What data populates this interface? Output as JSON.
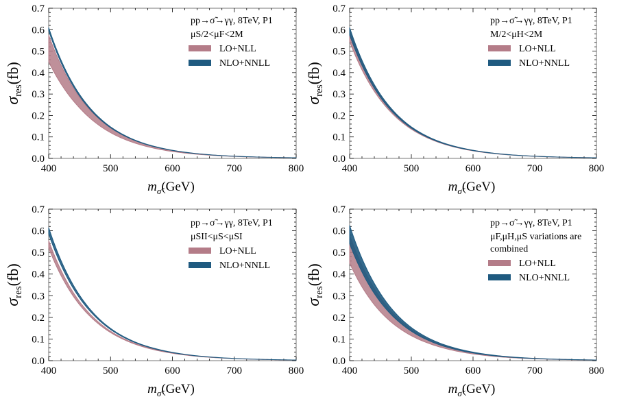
{
  "chart_data": [
    {
      "type": "area",
      "panel": "top-left",
      "title_lines": [
        "pp→σ̃→γγ, 8TeV, P1",
        "μS/2<μF<2M"
      ],
      "xlabel": "mσ̃(GeV)",
      "ylabel": "σres(fb)",
      "xlim": [
        400,
        800
      ],
      "ylim": [
        0,
        0.7
      ],
      "xticks": [
        400,
        500,
        600,
        700,
        800
      ],
      "yticks": [
        0.0,
        0.1,
        0.2,
        0.3,
        0.4,
        0.5,
        0.6,
        0.7
      ],
      "legend_position": "top-right",
      "x": [
        400,
        450,
        500,
        550,
        600,
        650,
        700,
        750,
        800
      ],
      "series": [
        {
          "name": "LO+NLL",
          "color": "#b47c88",
          "lower": [
            0.45,
            0.235,
            0.12,
            0.062,
            0.032,
            0.017,
            0.009,
            0.005,
            0.0027
          ],
          "upper": [
            0.575,
            0.285,
            0.142,
            0.072,
            0.037,
            0.019,
            0.01,
            0.0055,
            0.003
          ]
        },
        {
          "name": "NLO+NNLL",
          "color": "#1f5a80",
          "lower": [
            0.595,
            0.29,
            0.143,
            0.072,
            0.037,
            0.019,
            0.01,
            0.0055,
            0.003
          ],
          "upper": [
            0.61,
            0.298,
            0.147,
            0.074,
            0.038,
            0.0195,
            0.0103,
            0.0056,
            0.0031
          ]
        }
      ]
    },
    {
      "type": "area",
      "panel": "top-right",
      "title_lines": [
        "pp→σ̃→γγ, 8TeV, P1",
        "M/2<μH<2M"
      ],
      "xlabel": "mσ̃(GeV)",
      "ylabel": "σres(fb)",
      "xlim": [
        400,
        800
      ],
      "ylim": [
        0,
        0.7
      ],
      "xticks": [
        400,
        500,
        600,
        700,
        800
      ],
      "yticks": [
        0.0,
        0.1,
        0.2,
        0.3,
        0.4,
        0.5,
        0.6,
        0.7
      ],
      "legend_position": "top-right",
      "x": [
        400,
        450,
        500,
        550,
        600,
        650,
        700,
        750,
        800
      ],
      "series": [
        {
          "name": "LO+NLL",
          "color": "#b47c88",
          "lower": [
            0.545,
            0.272,
            0.136,
            0.069,
            0.035,
            0.018,
            0.0095,
            0.0051,
            0.0028
          ],
          "upper": [
            0.6,
            0.295,
            0.146,
            0.073,
            0.0375,
            0.0192,
            0.0101,
            0.0055,
            0.003
          ]
        },
        {
          "name": "NLO+NNLL",
          "color": "#1f5a80",
          "lower": [
            0.575,
            0.284,
            0.141,
            0.071,
            0.0365,
            0.0188,
            0.0099,
            0.0054,
            0.0029
          ],
          "upper": [
            0.61,
            0.298,
            0.147,
            0.074,
            0.038,
            0.0195,
            0.0103,
            0.0056,
            0.0031
          ]
        }
      ]
    },
    {
      "type": "area",
      "panel": "bottom-left",
      "title_lines": [
        "pp→σ̃→γγ, 8TeV, P1",
        "μSII<μS<μSI"
      ],
      "xlabel": "mσ̃(GeV)",
      "ylabel": "σres(fb)",
      "xlim": [
        400,
        800
      ],
      "ylim": [
        0,
        0.7
      ],
      "xticks": [
        400,
        500,
        600,
        700,
        800
      ],
      "yticks": [
        0.0,
        0.1,
        0.2,
        0.3,
        0.4,
        0.5,
        0.6,
        0.7
      ],
      "legend_position": "top-right",
      "x": [
        400,
        450,
        500,
        550,
        600,
        650,
        700,
        750,
        800
      ],
      "series": [
        {
          "name": "LO+NLL",
          "color": "#b47c88",
          "lower": [
            0.52,
            0.258,
            0.13,
            0.066,
            0.034,
            0.0175,
            0.0093,
            0.005,
            0.0027
          ],
          "upper": [
            0.555,
            0.272,
            0.136,
            0.069,
            0.0355,
            0.0182,
            0.0096,
            0.0052,
            0.0028
          ]
        },
        {
          "name": "NLO+NNLL",
          "color": "#1f5a80",
          "lower": [
            0.585,
            0.289,
            0.144,
            0.0725,
            0.037,
            0.019,
            0.01,
            0.0055,
            0.003
          ],
          "upper": [
            0.615,
            0.302,
            0.149,
            0.075,
            0.0385,
            0.0197,
            0.0104,
            0.0057,
            0.0031
          ]
        }
      ]
    },
    {
      "type": "area",
      "panel": "bottom-right",
      "title_lines": [
        "pp→σ̃→γγ, 8TeV, P1",
        "μF,μH,μS variations are",
        "combined"
      ],
      "xlabel": "mσ̃(GeV)",
      "ylabel": "σres(fb)",
      "xlim": [
        400,
        800
      ],
      "ylim": [
        0,
        0.7
      ],
      "xticks": [
        400,
        500,
        600,
        700,
        800
      ],
      "yticks": [
        0.0,
        0.1,
        0.2,
        0.3,
        0.4,
        0.5,
        0.6,
        0.7
      ],
      "legend_position": "top-right",
      "x": [
        400,
        450,
        500,
        550,
        600,
        650,
        700,
        750,
        800
      ],
      "series": [
        {
          "name": "LO+NLL",
          "color": "#b47c88",
          "lower": [
            0.45,
            0.225,
            0.115,
            0.06,
            0.031,
            0.016,
            0.0087,
            0.0047,
            0.0026
          ],
          "upper": [
            0.58,
            0.29,
            0.145,
            0.073,
            0.0375,
            0.0193,
            0.0102,
            0.0055,
            0.003
          ]
        },
        {
          "name": "NLO+NNLL",
          "color": "#1f5a80",
          "lower": [
            0.54,
            0.27,
            0.136,
            0.069,
            0.0355,
            0.0183,
            0.0097,
            0.0053,
            0.0029
          ],
          "upper": [
            0.625,
            0.31,
            0.153,
            0.077,
            0.0395,
            0.0202,
            0.0106,
            0.0058,
            0.0032
          ]
        }
      ]
    }
  ]
}
